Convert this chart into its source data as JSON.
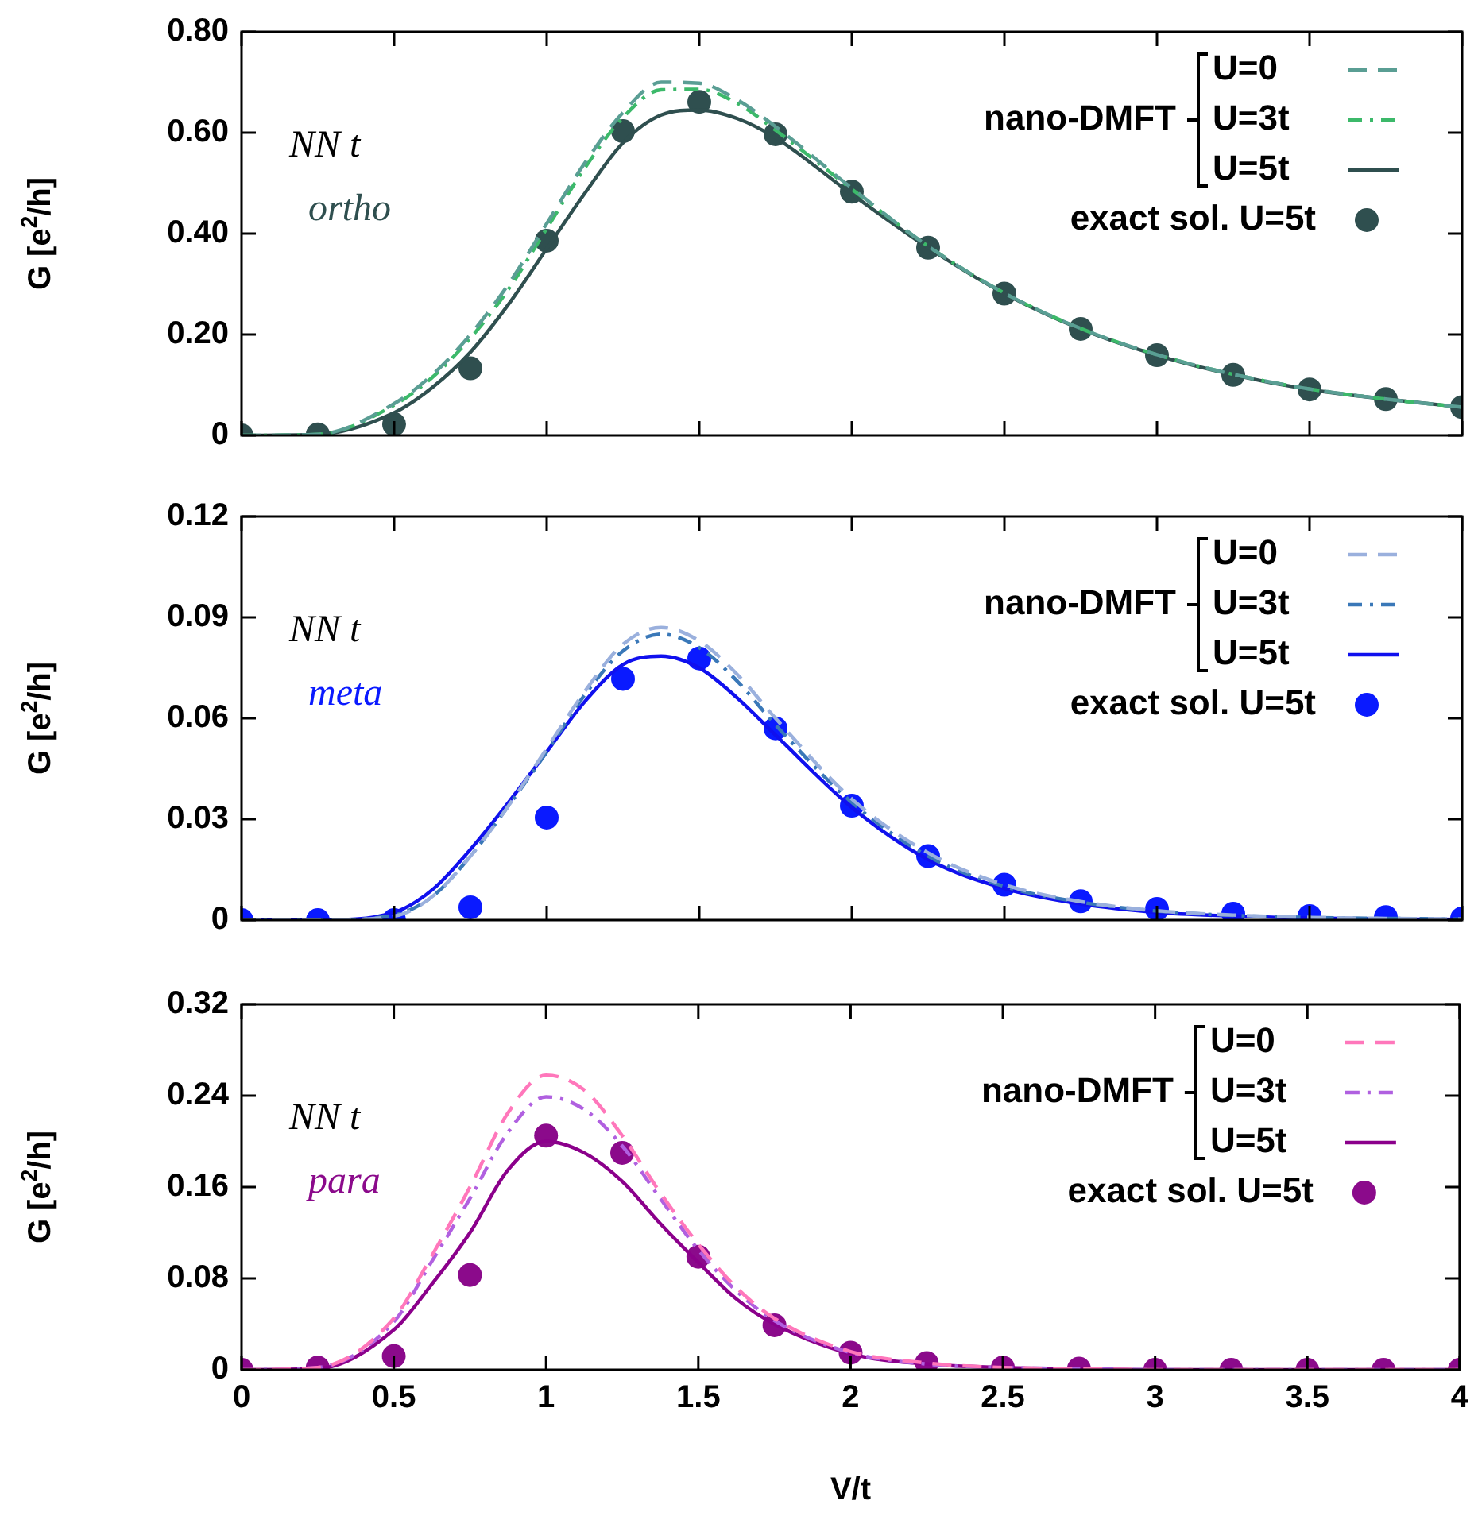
{
  "chart_data": [
    {
      "type": "line",
      "ylabel": "G [e$^{2}$/h]",
      "legend_title": "nano-DMFT",
      "legend": "top right",
      "grid": false,
      "tick_labels": "y",
      "annotations": [
        "NN t",
        "ortho"
      ],
      "xlim": [
        0,
        4
      ],
      "xticks": [
        0,
        0.5,
        1,
        1.5,
        2,
        2.5,
        3,
        3.5,
        4
      ],
      "ylim": [
        0,
        0.8
      ],
      "yticks": [
        {
          "value": 0,
          "label": "0"
        },
        {
          "value": 0.2,
          "label": "0.20"
        },
        {
          "value": 0.4,
          "label": "0.40"
        },
        {
          "value": 0.6,
          "label": "0.60"
        },
        {
          "value": 0.8,
          "label": "0.80"
        }
      ],
      "marker": "none",
      "series": [
        {
          "name": "U=0",
          "color": "#5a9e94",
          "line_style": "dashed",
          "x": [
            0,
            0.25,
            0.5,
            0.625,
            0.75,
            0.875,
            1,
            1.125,
            1.25,
            1.375,
            1.5,
            1.625,
            1.75,
            2,
            2.25,
            2.5,
            2.75,
            3,
            3.25,
            3.5,
            3.75,
            4
          ],
          "values": [
            0,
            0.002,
            0.063,
            0.12,
            0.2,
            0.3,
            0.42,
            0.54,
            0.64,
            0.7,
            0.698,
            0.665,
            0.612,
            0.49,
            0.375,
            0.282,
            0.212,
            0.16,
            0.121,
            0.092,
            0.072,
            0.056
          ]
        },
        {
          "name": "U=3t",
          "color": "#3cb96a",
          "line_style": "dotted",
          "x": [
            0,
            0.25,
            0.5,
            0.625,
            0.75,
            0.875,
            1,
            1.125,
            1.25,
            1.375,
            1.5,
            1.625,
            1.75,
            2,
            2.25,
            2.5,
            2.75,
            3,
            3.25,
            3.5,
            3.75,
            4
          ],
          "values": [
            0,
            0.002,
            0.06,
            0.115,
            0.193,
            0.29,
            0.41,
            0.53,
            0.63,
            0.685,
            0.686,
            0.658,
            0.605,
            0.488,
            0.375,
            0.282,
            0.212,
            0.16,
            0.121,
            0.092,
            0.072,
            0.056
          ]
        },
        {
          "name": "U=5t",
          "color": "#2f4f4f",
          "line_style": "solid",
          "x": [
            0,
            0.25,
            0.5,
            0.625,
            0.75,
            0.875,
            1,
            1.125,
            1.25,
            1.375,
            1.5,
            1.625,
            1.75,
            2,
            2.25,
            2.5,
            2.75,
            3,
            3.25,
            3.5,
            3.75,
            4
          ],
          "values": [
            0,
            0.002,
            0.045,
            0.095,
            0.165,
            0.26,
            0.37,
            0.48,
            0.58,
            0.635,
            0.645,
            0.628,
            0.59,
            0.478,
            0.372,
            0.281,
            0.211,
            0.159,
            0.12,
            0.091,
            0.072,
            0.056
          ]
        },
        {
          "name": "exact sol. U=5t",
          "type": "scatter",
          "marker": "circle",
          "color": "#2f4f4f",
          "x": [
            0,
            0.25,
            0.5,
            0.75,
            1,
            1.25,
            1.5,
            1.75,
            2,
            2.25,
            2.5,
            2.75,
            3,
            3.25,
            3.5,
            3.75,
            4
          ],
          "values": [
            0,
            0.002,
            0.022,
            0.133,
            0.386,
            0.603,
            0.661,
            0.597,
            0.483,
            0.372,
            0.281,
            0.211,
            0.159,
            0.12,
            0.091,
            0.072,
            0.056
          ]
        }
      ]
    },
    {
      "type": "line",
      "ylabel": "G [e$^{2}$/h]",
      "legend_title": "nano-DMFT",
      "legend": "top right",
      "grid": false,
      "tick_labels": "y",
      "annotations": [
        "NN t",
        "meta"
      ],
      "xlim": [
        0,
        4
      ],
      "xticks": [
        0,
        0.5,
        1,
        1.5,
        2,
        2.5,
        3,
        3.5,
        4
      ],
      "ylim": [
        0,
        0.12
      ],
      "yticks": [
        {
          "value": 0,
          "label": "0"
        },
        {
          "value": 0.03,
          "label": "0.03"
        },
        {
          "value": 0.06,
          "label": "0.06"
        },
        {
          "value": 0.09,
          "label": "0.09"
        },
        {
          "value": 0.12,
          "label": "0.12"
        }
      ],
      "marker": "none",
      "series": [
        {
          "name": "U=0",
          "color": "#9ab0dd",
          "line_style": "dashed",
          "x": [
            0,
            0.25,
            0.5,
            0.625,
            0.75,
            0.875,
            1,
            1.125,
            1.25,
            1.375,
            1.5,
            1.625,
            1.75,
            2,
            2.25,
            2.5,
            2.75,
            3,
            3.25,
            3.5,
            3.75,
            4
          ],
          "values": [
            0,
            0,
            0.0012,
            0.007,
            0.019,
            0.034,
            0.051,
            0.068,
            0.082,
            0.087,
            0.083,
            0.073,
            0.06,
            0.036,
            0.02,
            0.0105,
            0.0055,
            0.0028,
            0.0015,
            0.0008,
            0.0005,
            0.0003
          ]
        },
        {
          "name": "U=3t",
          "color": "#3a78b8",
          "line_style": "dotted",
          "x": [
            0,
            0.25,
            0.5,
            0.625,
            0.75,
            0.875,
            1,
            1.125,
            1.25,
            1.375,
            1.5,
            1.625,
            1.75,
            2,
            2.25,
            2.5,
            2.75,
            3,
            3.25,
            3.5,
            3.75,
            4
          ],
          "values": [
            0,
            0,
            0.0015,
            0.007,
            0.019,
            0.034,
            0.05,
            0.067,
            0.08,
            0.085,
            0.081,
            0.071,
            0.058,
            0.035,
            0.019,
            0.01,
            0.0053,
            0.0027,
            0.0014,
            0.0008,
            0.0005,
            0.0003
          ]
        },
        {
          "name": "U=5t",
          "color": "#1010ee",
          "line_style": "solid",
          "x": [
            0,
            0.25,
            0.5,
            0.625,
            0.75,
            0.875,
            1,
            1.125,
            1.25,
            1.375,
            1.5,
            1.625,
            1.75,
            2,
            2.25,
            2.5,
            2.75,
            3,
            3.25,
            3.5,
            3.75,
            4
          ],
          "values": [
            0,
            0,
            0.0023,
            0.009,
            0.021,
            0.035,
            0.05,
            0.065,
            0.076,
            0.0785,
            0.075,
            0.066,
            0.055,
            0.0335,
            0.018,
            0.0094,
            0.0048,
            0.0023,
            0.0012,
            0.0006,
            0.0003,
            0.0002
          ]
        },
        {
          "name": "exact sol. U=5t",
          "type": "scatter",
          "marker": "circle",
          "color": "#0a1aff",
          "x": [
            0,
            0.25,
            0.5,
            0.75,
            1,
            1.25,
            1.5,
            1.75,
            2,
            2.25,
            2.5,
            2.75,
            3,
            3.25,
            3.5,
            3.75,
            4
          ],
          "values": [
            0,
            0,
            0,
            0.0038,
            0.0305,
            0.0717,
            0.0778,
            0.057,
            0.034,
            0.019,
            0.0105,
            0.0056,
            0.0033,
            0.0019,
            0.0012,
            0.0009,
            0.0005
          ]
        }
      ]
    },
    {
      "type": "line",
      "xlabel": "V/t",
      "ylabel": "G [e$^{2}$/h]",
      "legend_title": "nano-DMFT",
      "legend": "top right",
      "grid": false,
      "annotations": [
        "NN t",
        "para"
      ],
      "xlim": [
        0,
        4
      ],
      "xticks": [
        0,
        0.5,
        1,
        1.5,
        2,
        2.5,
        3,
        3.5,
        4
      ],
      "ylim": [
        0,
        0.32
      ],
      "yticks": [
        {
          "value": 0,
          "label": "0"
        },
        {
          "value": 0.08,
          "label": "0.08"
        },
        {
          "value": 0.16,
          "label": "0.16"
        },
        {
          "value": 0.24,
          "label": "0.24"
        },
        {
          "value": 0.32,
          "label": "0.32"
        }
      ],
      "marker": "none",
      "series": [
        {
          "name": "U=0",
          "color": "#ff77bb",
          "line_style": "dashed",
          "x": [
            0,
            0.25,
            0.5,
            0.625,
            0.75,
            0.875,
            1,
            1.125,
            1.25,
            1.375,
            1.5,
            1.625,
            1.75,
            2,
            2.25,
            2.5,
            2.75,
            3,
            3.25,
            3.5,
            3.75,
            4
          ],
          "values": [
            0,
            0.002,
            0.045,
            0.1,
            0.16,
            0.225,
            0.258,
            0.245,
            0.205,
            0.155,
            0.11,
            0.072,
            0.045,
            0.016,
            0.006,
            0.002,
            0.001,
            0,
            0,
            0,
            0,
            0
          ]
        },
        {
          "name": "U=3t",
          "color": "#b060e0",
          "line_style": "dotted",
          "x": [
            0,
            0.25,
            0.5,
            0.625,
            0.75,
            0.875,
            1,
            1.125,
            1.25,
            1.375,
            1.5,
            1.625,
            1.75,
            2,
            2.25,
            2.5,
            2.75,
            3,
            3.25,
            3.5,
            3.75,
            4
          ],
          "values": [
            0,
            0.002,
            0.042,
            0.095,
            0.15,
            0.208,
            0.239,
            0.228,
            0.196,
            0.15,
            0.105,
            0.069,
            0.043,
            0.015,
            0.005,
            0.002,
            0.001,
            0,
            0,
            0,
            0,
            0
          ]
        },
        {
          "name": "U=5t",
          "color": "#8b008b",
          "line_style": "solid",
          "x": [
            0,
            0.25,
            0.5,
            0.625,
            0.75,
            0.875,
            1,
            1.125,
            1.25,
            1.375,
            1.5,
            1.625,
            1.75,
            2,
            2.25,
            2.5,
            2.75,
            3,
            3.25,
            3.5,
            3.75,
            4
          ],
          "values": [
            0,
            0.001,
            0.035,
            0.075,
            0.12,
            0.175,
            0.2,
            0.19,
            0.165,
            0.128,
            0.094,
            0.062,
            0.04,
            0.014,
            0.005,
            0.002,
            0.001,
            0,
            0,
            0,
            0,
            0
          ]
        },
        {
          "name": "exact sol. U=5t",
          "type": "scatter",
          "marker": "circle",
          "color": "#8b0a8b",
          "x": [
            0,
            0.25,
            0.5,
            0.75,
            1,
            1.25,
            1.5,
            1.75,
            2,
            2.25,
            2.5,
            2.75,
            3,
            3.25,
            3.5,
            3.75,
            4
          ],
          "values": [
            0,
            0.002,
            0.012,
            0.083,
            0.205,
            0.19,
            0.099,
            0.039,
            0.015,
            0.006,
            0.002,
            0.001,
            0,
            0,
            0,
            0,
            0
          ]
        }
      ]
    }
  ]
}
